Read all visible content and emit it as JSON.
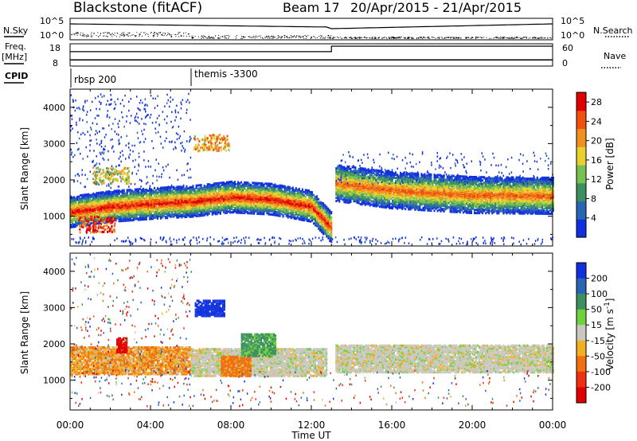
{
  "header": {
    "station": "Blackstone (fitACF)",
    "beam": "Beam 17",
    "date_range": "20/Apr/2015 - 21/Apr/2015"
  },
  "summary_panels": {
    "nsky_label": "N.Sky",
    "nsky_left_ticks": [
      "10^5",
      "10^0"
    ],
    "nsky_right_ticks": [
      "10^5",
      "10^0"
    ],
    "nsearch_label": "N.Search",
    "freq_label_line1": "Freq.",
    "freq_label_line2": "[MHz]",
    "freq_left_ticks": [
      "18",
      "8"
    ],
    "freq_right_ticks": [
      "60",
      "0"
    ],
    "nave_label": "Nave",
    "cpid_label": "CPID",
    "cpid_segments": [
      {
        "label": "rbsp 200",
        "start_hour": 0
      },
      {
        "label": "themis -3300",
        "start_hour": 6
      }
    ],
    "freq_series": {
      "before_hour": 13,
      "before_mhz": 10.5,
      "after_mhz": 10.5
    },
    "nave_series": {
      "before_hour": 13,
      "before": 42,
      "after": 60
    }
  },
  "chart_data": [
    {
      "type": "heatmap",
      "title": "Power",
      "ylabel": "Slant Range [km]",
      "xlabel": "",
      "ylim": [
        180,
        4500
      ],
      "yticks": [
        1000,
        2000,
        3000,
        4000
      ],
      "xlim_hours": [
        0,
        24
      ],
      "colorbar": {
        "label": "Power [dB]",
        "ticks": [
          4,
          8,
          12,
          16,
          20,
          24,
          28
        ],
        "range": [
          0,
          30
        ],
        "colors": [
          "#1030e0",
          "#2a64b4",
          "#3c9060",
          "#78c050",
          "#e8d030",
          "#f09020",
          "#f05010",
          "#e00000"
        ]
      },
      "bands": [
        {
          "from_h": 0.0,
          "to_h": 13.0,
          "center_km": [
            [
              0,
              1150
            ],
            [
              2,
              1300
            ],
            [
              4,
              1380
            ],
            [
              6,
              1440
            ],
            [
              8,
              1560
            ],
            [
              10,
              1500
            ],
            [
              12,
              1300
            ],
            [
              13,
              700
            ]
          ],
          "width_km": 420,
          "peak_db": 28
        },
        {
          "from_h": 13.2,
          "to_h": 24.0,
          "center_km": [
            [
              13.2,
              1950
            ],
            [
              16,
              1750
            ],
            [
              20,
              1620
            ],
            [
              24,
              1600
            ]
          ],
          "width_km": 500,
          "peak_db": 24
        }
      ],
      "patches": [
        {
          "label": "",
          "hour": 7.0,
          "km": 3050,
          "db": 20
        },
        {
          "label": "",
          "hour": 2.0,
          "km": 2150,
          "db": 16
        },
        {
          "label": "",
          "hour": 1.3,
          "km": 800,
          "db": 26
        }
      ]
    },
    {
      "type": "heatmap",
      "title": "Velocity",
      "ylabel": "Slant Range [km]",
      "xlabel": "Time UT",
      "ylim": [
        180,
        4500
      ],
      "yticks": [
        1000,
        2000,
        3000,
        4000
      ],
      "xlim_hours": [
        0,
        24
      ],
      "xticks": [
        "00:00",
        "04:00",
        "08:00",
        "12:00",
        "16:00",
        "20:00",
        "00:00"
      ],
      "colorbar": {
        "label": "Velocity [m s^-1]",
        "ticks": [
          200,
          100,
          50,
          15,
          -15,
          -50,
          -100,
          -200
        ],
        "colors": [
          "#1030e0",
          "#2a64b4",
          "#3c9060",
          "#70d040",
          "#c8c8c0",
          "#f0b020",
          "#f07010",
          "#f03010",
          "#e00000"
        ]
      },
      "regions": [
        {
          "from_h": 0.0,
          "to_h": 6.0,
          "km": [
            1200,
            1950
          ],
          "vel": -30
        },
        {
          "from_h": 6.0,
          "to_h": 12.8,
          "km": [
            1150,
            1900
          ],
          "vel": 0
        },
        {
          "from_h": 13.2,
          "to_h": 24.0,
          "km": [
            1250,
            2000
          ],
          "vel": 0
        },
        {
          "from_h": 2.3,
          "to_h": 2.8,
          "km": [
            1800,
            2200
          ],
          "vel": -200
        },
        {
          "from_h": 6.2,
          "to_h": 7.7,
          "km": [
            2800,
            3250
          ],
          "vel": 200
        },
        {
          "from_h": 7.5,
          "to_h": 9.0,
          "km": [
            1150,
            1700
          ],
          "vel": -45
        },
        {
          "from_h": 8.5,
          "to_h": 10.2,
          "km": [
            1700,
            2300
          ],
          "vel": 40
        }
      ]
    }
  ]
}
